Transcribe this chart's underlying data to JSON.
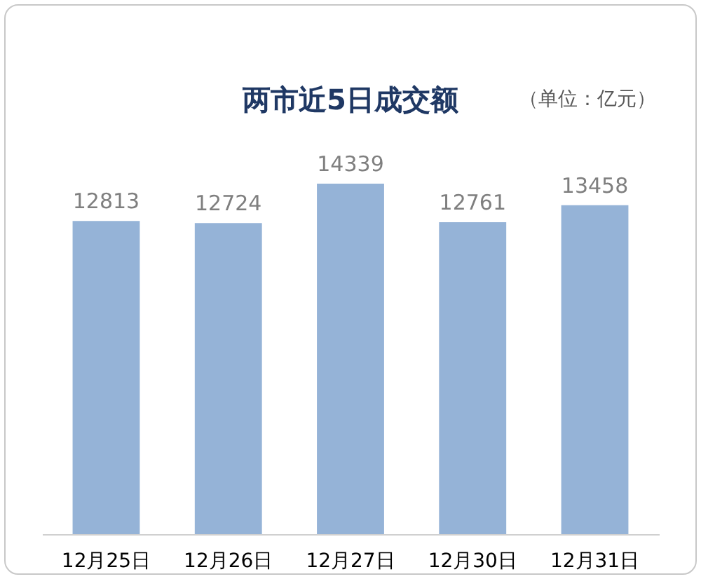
{
  "chart_data": {
    "type": "bar",
    "title": "两市近5日成交额",
    "annotations": [
      "（单位：亿元）"
    ],
    "categories": [
      "12月25日",
      "12月26日",
      "12月27日",
      "12月30日",
      "12月31日"
    ],
    "values": [
      12813,
      12724,
      14339,
      12761,
      13458
    ],
    "color": "#95b3d7",
    "data_labels": true,
    "grid": false
  }
}
